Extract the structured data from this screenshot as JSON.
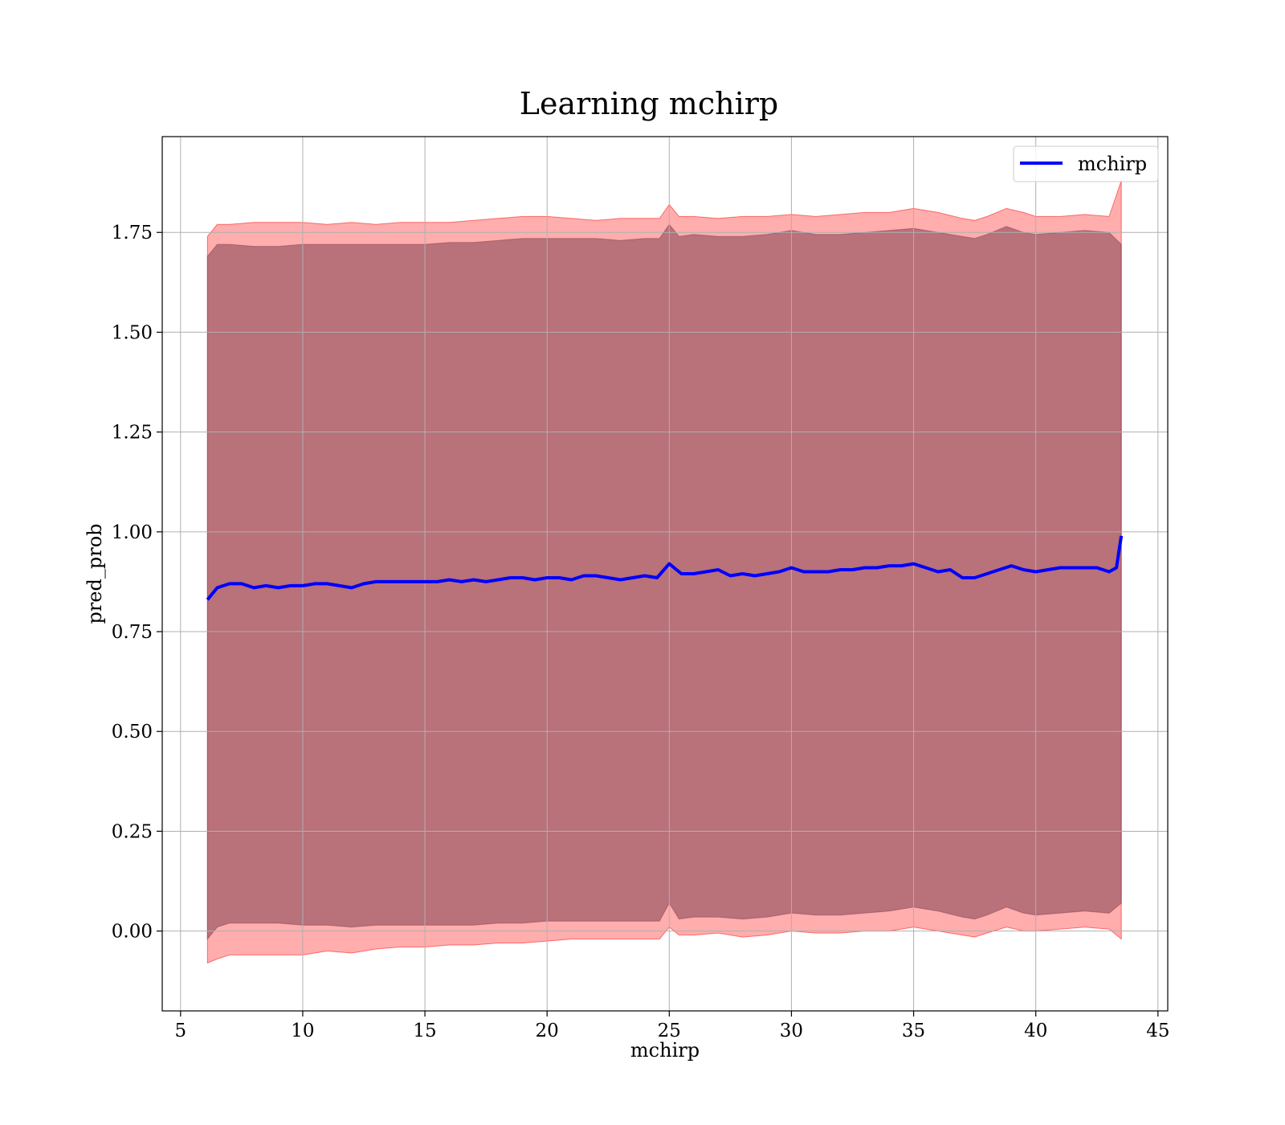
{
  "chart_data": {
    "type": "line",
    "title": "Learning mchirp",
    "xlabel": "mchirp",
    "ylabel": "pred_prob",
    "xlim": [
      4.25,
      45.4
    ],
    "ylim": [
      -0.2,
      1.99
    ],
    "xticks": [
      5,
      10,
      15,
      20,
      25,
      30,
      35,
      40,
      45
    ],
    "xtick_labels": [
      "5",
      "10",
      "15",
      "20",
      "25",
      "30",
      "35",
      "40",
      "45"
    ],
    "yticks": [
      0.0,
      0.25,
      0.5,
      0.75,
      1.0,
      1.25,
      1.5,
      1.75
    ],
    "ytick_labels": [
      "0.00",
      "0.25",
      "0.50",
      "0.75",
      "1.00",
      "1.25",
      "1.50",
      "1.75"
    ],
    "grid": true,
    "legend": {
      "placement": "top-right",
      "entries": [
        "mchirp"
      ]
    },
    "colors": {
      "line": "#0000ff",
      "band_outer": "#ff0000",
      "band_inner": "#7f3f50",
      "grid": "#b0b0b0"
    },
    "series": [
      {
        "name": "mchirp",
        "x": [
          6.1,
          6.5,
          7.0,
          7.5,
          8.0,
          8.5,
          9.0,
          9.5,
          10.0,
          10.5,
          11.0,
          11.5,
          12.0,
          12.5,
          13.0,
          13.5,
          14.0,
          14.5,
          15.0,
          15.5,
          16.0,
          16.5,
          17.0,
          17.5,
          18.0,
          18.5,
          19.0,
          19.5,
          20.0,
          20.5,
          21.0,
          21.5,
          22.0,
          22.5,
          23.0,
          23.5,
          24.0,
          24.5,
          25.0,
          25.5,
          26.0,
          26.5,
          27.0,
          27.5,
          28.0,
          28.5,
          29.0,
          29.5,
          30.0,
          30.5,
          31.0,
          31.5,
          32.0,
          32.5,
          33.0,
          33.5,
          34.0,
          34.5,
          35.0,
          35.5,
          36.0,
          36.5,
          37.0,
          37.5,
          38.0,
          38.5,
          39.0,
          39.5,
          40.0,
          40.5,
          41.0,
          41.5,
          42.0,
          42.5,
          43.0,
          43.3,
          43.5
        ],
        "values": [
          0.83,
          0.86,
          0.87,
          0.87,
          0.86,
          0.865,
          0.86,
          0.865,
          0.865,
          0.87,
          0.87,
          0.865,
          0.86,
          0.87,
          0.875,
          0.875,
          0.875,
          0.875,
          0.875,
          0.875,
          0.88,
          0.875,
          0.88,
          0.875,
          0.88,
          0.885,
          0.885,
          0.88,
          0.885,
          0.885,
          0.88,
          0.89,
          0.89,
          0.885,
          0.88,
          0.885,
          0.89,
          0.885,
          0.92,
          0.895,
          0.895,
          0.9,
          0.905,
          0.89,
          0.895,
          0.89,
          0.895,
          0.9,
          0.91,
          0.9,
          0.9,
          0.9,
          0.905,
          0.905,
          0.91,
          0.91,
          0.915,
          0.915,
          0.92,
          0.91,
          0.9,
          0.905,
          0.885,
          0.885,
          0.895,
          0.905,
          0.915,
          0.905,
          0.9,
          0.905,
          0.91,
          0.91,
          0.91,
          0.91,
          0.9,
          0.91,
          0.99
        ]
      }
    ],
    "bands": [
      {
        "x": [
          6.1,
          6.5,
          7.0,
          8.0,
          9.0,
          10.0,
          11.0,
          12.0,
          13.0,
          14.0,
          15.0,
          16.0,
          17.0,
          18.0,
          19.0,
          20.0,
          21.0,
          22.0,
          23.0,
          24.0,
          24.6,
          25.0,
          25.4,
          26.0,
          27.0,
          28.0,
          29.0,
          30.0,
          31.0,
          32.0,
          33.0,
          34.0,
          35.0,
          36.0,
          37.0,
          37.5,
          38.0,
          38.8,
          39.5,
          40.0,
          41.0,
          42.0,
          43.0,
          43.5
        ],
        "lower": [
          -0.08,
          -0.07,
          -0.06,
          -0.06,
          -0.06,
          -0.06,
          -0.05,
          -0.055,
          -0.045,
          -0.04,
          -0.04,
          -0.035,
          -0.035,
          -0.03,
          -0.03,
          -0.025,
          -0.02,
          -0.02,
          -0.02,
          -0.02,
          -0.02,
          0.01,
          -0.01,
          -0.01,
          -0.005,
          -0.015,
          -0.01,
          0.0,
          -0.005,
          -0.005,
          0.0,
          0.0,
          0.01,
          0.0,
          -0.01,
          -0.015,
          -0.005,
          0.01,
          0.0,
          0.0,
          0.005,
          0.01,
          0.005,
          -0.02
        ],
        "upper": [
          1.74,
          1.77,
          1.77,
          1.775,
          1.775,
          1.775,
          1.77,
          1.775,
          1.77,
          1.775,
          1.775,
          1.775,
          1.78,
          1.785,
          1.79,
          1.79,
          1.785,
          1.78,
          1.785,
          1.785,
          1.785,
          1.82,
          1.79,
          1.79,
          1.785,
          1.79,
          1.79,
          1.795,
          1.79,
          1.795,
          1.8,
          1.8,
          1.81,
          1.8,
          1.785,
          1.78,
          1.79,
          1.81,
          1.8,
          1.79,
          1.79,
          1.795,
          1.79,
          1.88
        ]
      },
      {
        "x": [
          6.1,
          6.5,
          7.0,
          8.0,
          9.0,
          10.0,
          11.0,
          12.0,
          13.0,
          14.0,
          15.0,
          16.0,
          17.0,
          18.0,
          19.0,
          20.0,
          21.0,
          22.0,
          23.0,
          24.0,
          24.6,
          25.0,
          25.4,
          26.0,
          27.0,
          28.0,
          29.0,
          30.0,
          31.0,
          32.0,
          33.0,
          34.0,
          35.0,
          36.0,
          37.0,
          37.5,
          38.0,
          38.8,
          39.5,
          40.0,
          41.0,
          42.0,
          43.0,
          43.5
        ],
        "lower": [
          -0.02,
          0.01,
          0.02,
          0.02,
          0.02,
          0.015,
          0.015,
          0.01,
          0.015,
          0.015,
          0.015,
          0.015,
          0.015,
          0.02,
          0.02,
          0.025,
          0.025,
          0.025,
          0.025,
          0.025,
          0.025,
          0.07,
          0.03,
          0.035,
          0.035,
          0.03,
          0.035,
          0.045,
          0.04,
          0.04,
          0.045,
          0.05,
          0.06,
          0.05,
          0.035,
          0.03,
          0.04,
          0.06,
          0.045,
          0.04,
          0.045,
          0.05,
          0.045,
          0.07
        ],
        "upper": [
          1.69,
          1.72,
          1.72,
          1.715,
          1.715,
          1.72,
          1.72,
          1.72,
          1.72,
          1.72,
          1.72,
          1.725,
          1.725,
          1.73,
          1.735,
          1.735,
          1.735,
          1.735,
          1.73,
          1.735,
          1.735,
          1.77,
          1.74,
          1.745,
          1.74,
          1.74,
          1.745,
          1.755,
          1.745,
          1.745,
          1.75,
          1.755,
          1.76,
          1.75,
          1.74,
          1.735,
          1.745,
          1.765,
          1.75,
          1.745,
          1.75,
          1.755,
          1.75,
          1.72
        ]
      }
    ]
  }
}
